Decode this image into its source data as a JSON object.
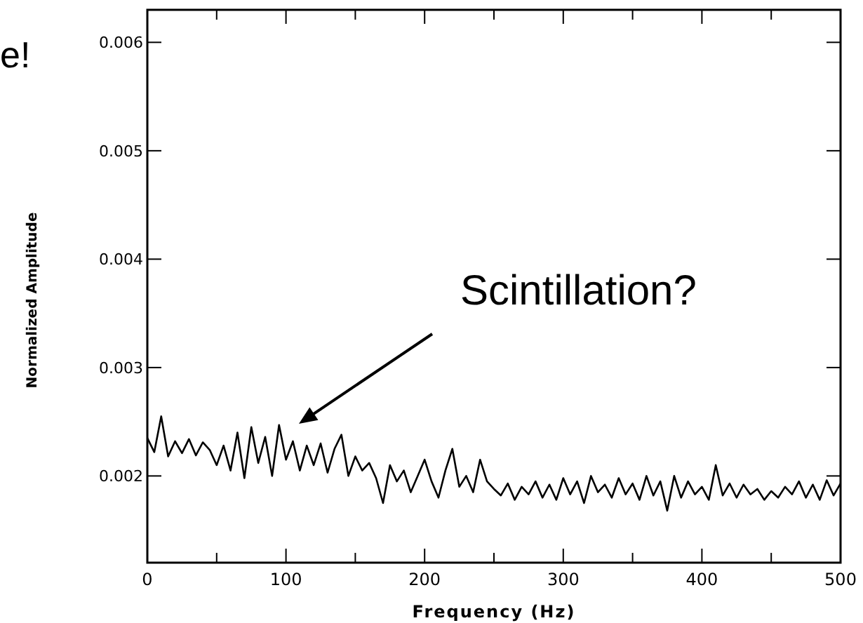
{
  "chart_data": {
    "type": "line",
    "xlabel": "Frequency (Hz)",
    "ylabel": "Normalized Amplitude",
    "annotations": [
      "e!",
      "Scintillation?"
    ],
    "xlim": [
      0,
      500
    ],
    "ylim": [
      0.0012,
      0.0063
    ],
    "xticks": [
      0,
      {
        "value": 50,
        "label": null
      },
      100,
      {
        "value": 150,
        "label": null
      },
      200,
      {
        "value": 250,
        "label": null
      },
      300,
      {
        "value": 350,
        "label": null
      },
      400,
      {
        "value": 450,
        "label": null
      },
      500
    ],
    "yticks": [
      0.002,
      0.003,
      0.004,
      0.005,
      0.006
    ],
    "grid": false,
    "marker": "none",
    "line_style": "solid",
    "series": [
      {
        "color": "#000000",
        "x": [
          0,
          5,
          10,
          15,
          20,
          25,
          30,
          35,
          40,
          45,
          50,
          55,
          60,
          65,
          70,
          75,
          80,
          85,
          90,
          95,
          100,
          105,
          110,
          115,
          120,
          125,
          130,
          135,
          140,
          145,
          150,
          155,
          160,
          165,
          170,
          175,
          180,
          185,
          190,
          195,
          200,
          205,
          210,
          215,
          220,
          225,
          230,
          235,
          240,
          245,
          250,
          255,
          260,
          265,
          270,
          275,
          280,
          285,
          290,
          295,
          300,
          305,
          310,
          315,
          320,
          325,
          330,
          335,
          340,
          345,
          350,
          355,
          360,
          365,
          370,
          375,
          380,
          385,
          390,
          395,
          400,
          405,
          410,
          415,
          420,
          425,
          430,
          435,
          440,
          445,
          450,
          455,
          460,
          465,
          470,
          475,
          480,
          485,
          490,
          495,
          500
        ],
        "values": [
          0.00235,
          0.00222,
          0.00255,
          0.00218,
          0.00232,
          0.00221,
          0.00234,
          0.00219,
          0.00231,
          0.00224,
          0.0021,
          0.00228,
          0.00205,
          0.0024,
          0.00198,
          0.00245,
          0.00212,
          0.00236,
          0.002,
          0.00247,
          0.00215,
          0.00232,
          0.00205,
          0.00228,
          0.0021,
          0.0023,
          0.00203,
          0.00225,
          0.00238,
          0.002,
          0.00218,
          0.00205,
          0.00212,
          0.00198,
          0.00175,
          0.0021,
          0.00195,
          0.00205,
          0.00185,
          0.002,
          0.00215,
          0.00195,
          0.0018,
          0.00205,
          0.00225,
          0.0019,
          0.002,
          0.00185,
          0.00215,
          0.00195,
          0.00188,
          0.00182,
          0.00193,
          0.00178,
          0.0019,
          0.00183,
          0.00195,
          0.0018,
          0.00192,
          0.00178,
          0.00198,
          0.00183,
          0.00195,
          0.00175,
          0.002,
          0.00185,
          0.00192,
          0.0018,
          0.00198,
          0.00183,
          0.00193,
          0.00178,
          0.002,
          0.00182,
          0.00195,
          0.00168,
          0.002,
          0.0018,
          0.00195,
          0.00183,
          0.0019,
          0.00178,
          0.0021,
          0.00182,
          0.00193,
          0.0018,
          0.00192,
          0.00183,
          0.00188,
          0.00178,
          0.00186,
          0.0018,
          0.0019,
          0.00183,
          0.00195,
          0.0018,
          0.00192,
          0.00178,
          0.00196,
          0.00182,
          0.00193
        ]
      }
    ]
  }
}
